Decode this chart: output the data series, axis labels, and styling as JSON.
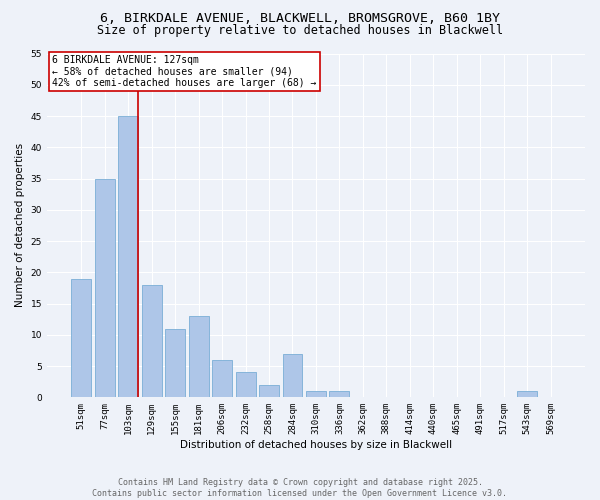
{
  "title_line1": "6, BIRKDALE AVENUE, BLACKWELL, BROMSGROVE, B60 1BY",
  "title_line2": "Size of property relative to detached houses in Blackwell",
  "xlabel": "Distribution of detached houses by size in Blackwell",
  "ylabel": "Number of detached properties",
  "categories": [
    "51sqm",
    "77sqm",
    "103sqm",
    "129sqm",
    "155sqm",
    "181sqm",
    "206sqm",
    "232sqm",
    "258sqm",
    "284sqm",
    "310sqm",
    "336sqm",
    "362sqm",
    "388sqm",
    "414sqm",
    "440sqm",
    "465sqm",
    "491sqm",
    "517sqm",
    "543sqm",
    "569sqm"
  ],
  "values": [
    19,
    35,
    45,
    18,
    11,
    13,
    6,
    4,
    2,
    7,
    1,
    1,
    0,
    0,
    0,
    0,
    0,
    0,
    0,
    1,
    0
  ],
  "bar_color": "#aec6e8",
  "bar_edge_color": "#7aaed6",
  "vline_color": "#cc0000",
  "annotation_text": "6 BIRKDALE AVENUE: 127sqm\n← 58% of detached houses are smaller (94)\n42% of semi-detached houses are larger (68) →",
  "annotation_box_color": "#ffffff",
  "annotation_box_edge_color": "#cc0000",
  "ylim": [
    0,
    55
  ],
  "yticks": [
    0,
    5,
    10,
    15,
    20,
    25,
    30,
    35,
    40,
    45,
    50,
    55
  ],
  "background_color": "#eef2f9",
  "grid_color": "#ffffff",
  "footer_text": "Contains HM Land Registry data © Crown copyright and database right 2025.\nContains public sector information licensed under the Open Government Licence v3.0.",
  "title_fontsize": 9.5,
  "subtitle_fontsize": 8.5,
  "axis_label_fontsize": 7.5,
  "tick_fontsize": 6.5,
  "annotation_fontsize": 7,
  "footer_fontsize": 6
}
